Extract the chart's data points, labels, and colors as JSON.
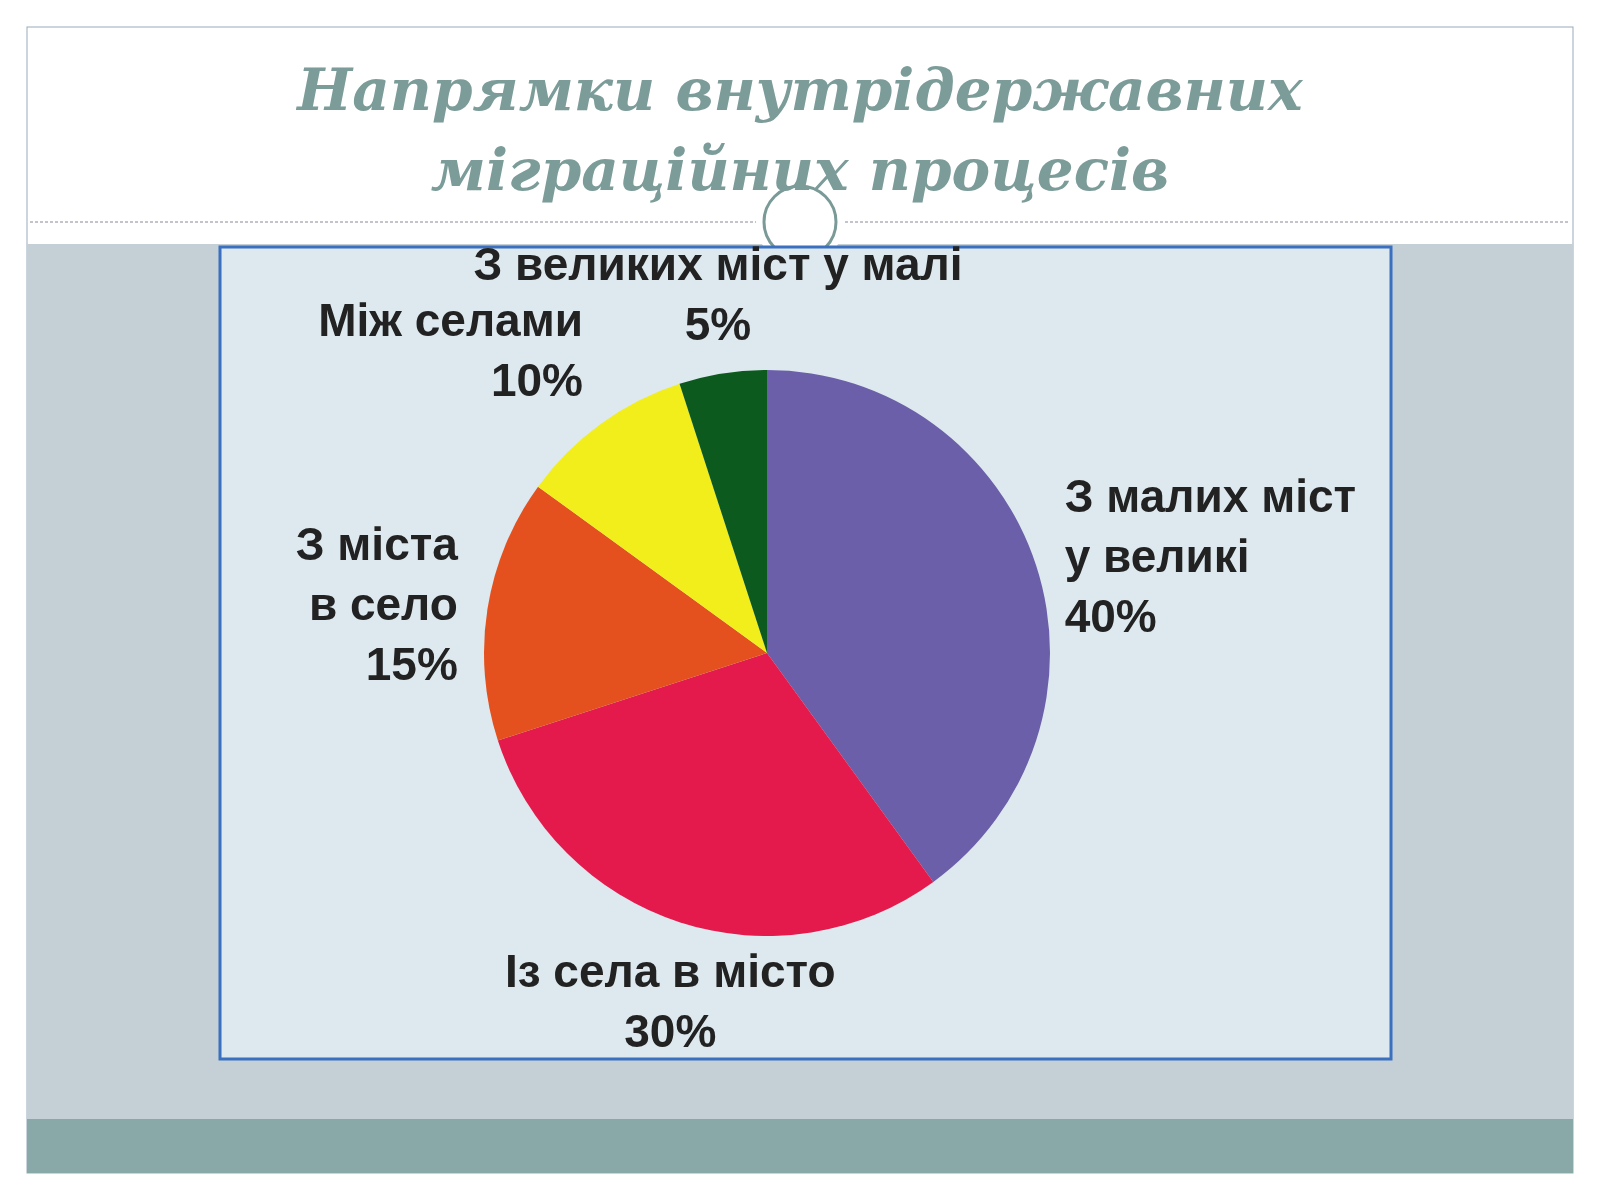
{
  "chart_data": {
    "type": "pie",
    "title": "Напрямки внутрідержавних міграційних процесів",
    "categories": [
      "З малих міст у великі",
      "Із села в місто",
      "З міста в село",
      "Між селами",
      "З великих міст у малі"
    ],
    "values": [
      40,
      30,
      15,
      10,
      5
    ],
    "value_labels": [
      "40%",
      "30%",
      "15%",
      "10%",
      "5%"
    ],
    "colors": [
      "#6a5fa8",
      "#e41a4c",
      "#e4501e",
      "#f2ee1c",
      "#0c5a1e"
    ]
  }
}
